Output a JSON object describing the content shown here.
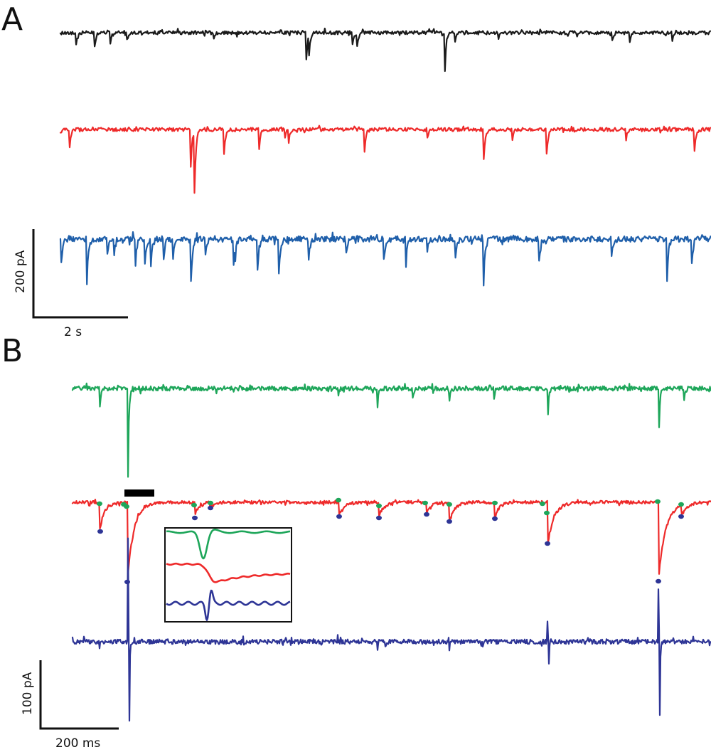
{
  "panels": {
    "a_label": "A",
    "b_label": "B"
  },
  "scale_bars": {
    "a_vertical": "200 pA",
    "a_horizontal": "2 s",
    "b_vertical": "100 pA",
    "b_horizontal": "200 ms"
  },
  "colors": {
    "black": "#1a1a1a",
    "red": "#ee2a2a",
    "blue": "#1f5faa",
    "green": "#1ea65a",
    "navy": "#2e3596",
    "dot_green": "#1ea65a",
    "dot_blue": "#2e3596"
  }
}
